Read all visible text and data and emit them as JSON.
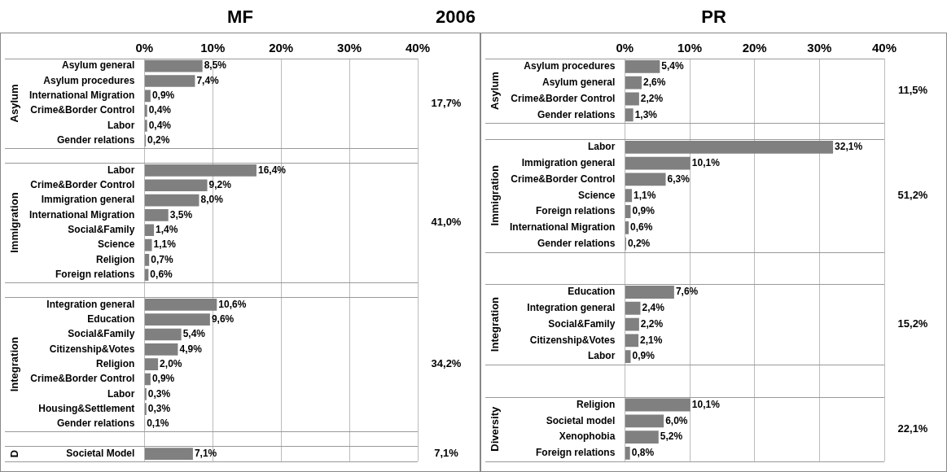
{
  "chart_data": [
    {
      "type": "bar",
      "orientation": "horizontal",
      "title": "MF",
      "subtitle": "2006",
      "categories": [
        "Asylum general",
        "Asylum procedures",
        "International Migration",
        "Crime&Border Control",
        "Labor",
        "Gender relations",
        null,
        "Labor",
        "Crime&Border Control",
        "Immigration general",
        "International Migration",
        "Social&Family",
        "Science",
        "Religion",
        "Foreign relations",
        null,
        "Integration general",
        "Education",
        "Social&Family",
        "Citizenship&Votes",
        "Religion",
        "Crime&Border Control",
        "Labor",
        "Housing&Settlement",
        "Gender relations",
        null,
        "Societal Model"
      ],
      "values": [
        8.5,
        7.4,
        0.9,
        0.4,
        0.4,
        0.2,
        null,
        16.4,
        9.2,
        8.0,
        3.5,
        1.4,
        1.1,
        0.7,
        0.6,
        null,
        10.6,
        9.6,
        5.4,
        4.9,
        2.0,
        0.9,
        0.3,
        0.3,
        0.1,
        null,
        7.1
      ],
      "value_labels": [
        "8,5%",
        "7,4%",
        "0,9%",
        "0,4%",
        "0,4%",
        "0,2%",
        null,
        "16,4%",
        "9,2%",
        "8,0%",
        "3,5%",
        "1,4%",
        "1,1%",
        "0,7%",
        "0,6%",
        null,
        "10,6%",
        "9,6%",
        "5,4%",
        "4,9%",
        "2,0%",
        "0,9%",
        "0,3%",
        "0,3%",
        "0,1%",
        null,
        "7,1%"
      ],
      "color": "#808080",
      "xlim": [
        0,
        40
      ],
      "xticks": [
        {
          "value": 0,
          "label": "0%"
        },
        {
          "value": 10,
          "label": "10%"
        },
        {
          "value": 20,
          "label": "20%"
        },
        {
          "value": 30,
          "label": "30%"
        },
        {
          "value": 40,
          "label": "40%"
        }
      ],
      "grid": "x",
      "legend": false,
      "annotations": [
        "Asylum",
        "17,7%",
        "Immigration",
        "41,0%",
        "Integration",
        "34,2%",
        "D",
        "7,1%"
      ]
    },
    {
      "type": "bar",
      "orientation": "horizontal",
      "title": "PR",
      "categories": [
        "Asylum procedures",
        "Asylum general",
        "Crime&Border Control",
        "Gender relations",
        null,
        "Labor",
        "Immigration general",
        "Crime&Border Control",
        "Science",
        "Foreign relations",
        "International Migration",
        "Gender relations",
        null,
        null,
        "Education",
        "Integration general",
        "Social&Family",
        "Citizenship&Votes",
        "Labor",
        null,
        null,
        "Religion",
        "Societal model",
        "Xenophobia",
        "Foreign relations"
      ],
      "values": [
        5.4,
        2.6,
        2.2,
        1.3,
        null,
        32.1,
        10.1,
        6.3,
        1.1,
        0.9,
        0.6,
        0.2,
        null,
        null,
        7.6,
        2.4,
        2.2,
        2.1,
        0.9,
        null,
        null,
        10.1,
        6.0,
        5.2,
        0.8
      ],
      "value_labels": [
        "5,4%",
        "2,6%",
        "2,2%",
        "1,3%",
        null,
        "32,1%",
        "10,1%",
        "6,3%",
        "1,1%",
        "0,9%",
        "0,6%",
        "0,2%",
        null,
        null,
        "7,6%",
        "2,4%",
        "2,2%",
        "2,1%",
        "0,9%",
        null,
        null,
        "10,1%",
        "6,0%",
        "5,2%",
        "0,8%"
      ],
      "color": "#808080",
      "xlim": [
        0,
        40
      ],
      "xticks": [
        {
          "value": 0,
          "label": "0%"
        },
        {
          "value": 10,
          "label": "10%"
        },
        {
          "value": 20,
          "label": "20%"
        },
        {
          "value": 30,
          "label": "30%"
        },
        {
          "value": 40,
          "label": "40%"
        }
      ],
      "grid": "x",
      "legend": false,
      "annotations": [
        "Asylum",
        "11,5%",
        "Immigration",
        "51,2%",
        "Integration",
        "15,2%",
        "Diversity",
        "22,1%"
      ]
    }
  ]
}
